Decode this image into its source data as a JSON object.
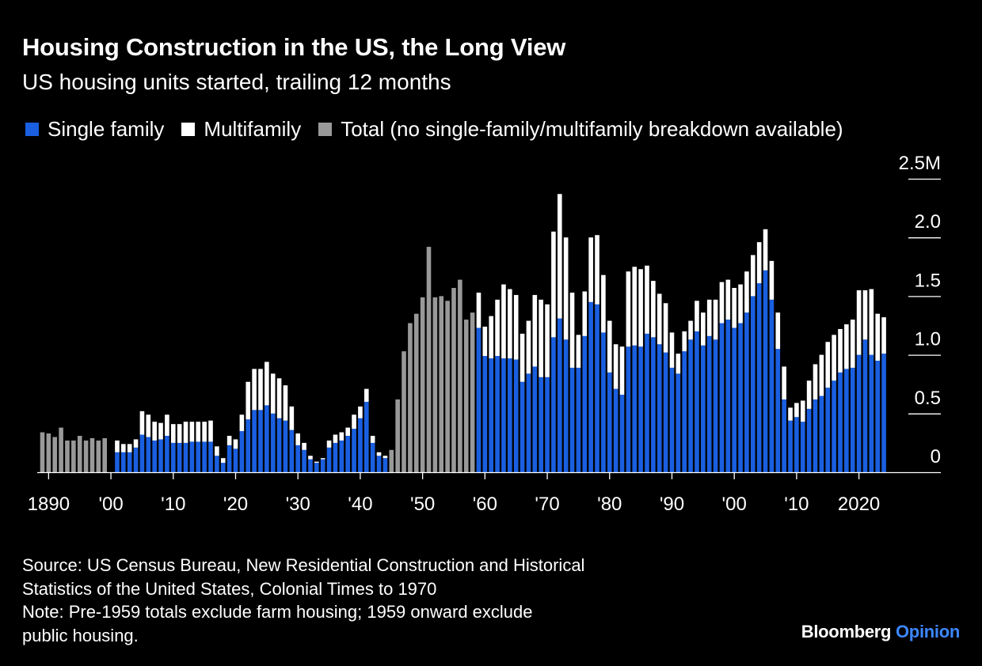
{
  "title": "Housing Construction in the US, the Long View",
  "subtitle": "US housing units started, trailing 12 months",
  "legend": [
    {
      "label": "Single family",
      "color": "#1a5fe0"
    },
    {
      "label": "Multifamily",
      "color": "#ffffff"
    },
    {
      "label": "Total (no single-family/multifamily breakdown available)",
      "color": "#999999"
    }
  ],
  "source": {
    "line1": "Source: US Census Bureau, New Residential Construction and Historical",
    "line2": "Statistics of the United States, Colonial Times to 1970",
    "note1": "Note: Pre-1959 totals exclude farm housing; 1959 onward exclude",
    "note2": "public housing."
  },
  "brand": {
    "name": "Bloomberg",
    "suffix": "Opinion"
  },
  "chart_data": {
    "type": "bar",
    "stacked": true,
    "ylim": [
      0,
      2.5
    ],
    "yticks": [
      {
        "value": 0,
        "label": "0"
      },
      {
        "value": 0.5,
        "label": "0.5"
      },
      {
        "value": 1.0,
        "label": "1.0"
      },
      {
        "value": 1.5,
        "label": "1.5"
      },
      {
        "value": 2.0,
        "label": "2.0"
      },
      {
        "value": 2.5,
        "label": "2.5M"
      }
    ],
    "xticks": [
      {
        "year": 1890,
        "label": "1890"
      },
      {
        "year": 1900,
        "label": "'00"
      },
      {
        "year": 1910,
        "label": "'10"
      },
      {
        "year": 1920,
        "label": "'20"
      },
      {
        "year": 1930,
        "label": "'30"
      },
      {
        "year": 1940,
        "label": "'40"
      },
      {
        "year": 1950,
        "label": "'50"
      },
      {
        "year": 1960,
        "label": "'60"
      },
      {
        "year": 1970,
        "label": "'70"
      },
      {
        "year": 1980,
        "label": "'80"
      },
      {
        "year": 1990,
        "label": "'90"
      },
      {
        "year": 2000,
        "label": "'00"
      },
      {
        "year": 2010,
        "label": "'10"
      },
      {
        "year": 2020,
        "label": "2020"
      }
    ],
    "series": [
      {
        "name": "Single family",
        "color": "#1a5fe0"
      },
      {
        "name": "Multifamily",
        "color": "#ffffff"
      },
      {
        "name": "Total (no single-family/multifamily breakdown available)",
        "color": "#999999"
      }
    ],
    "total_only": {
      "start_year": 1889,
      "values": [
        0.34,
        0.33,
        0.3,
        0.38,
        0.27,
        0.27,
        0.31,
        0.27,
        0.29,
        0.27,
        0.29,
        0.19,
        0.62,
        1.03,
        1.27,
        1.35,
        1.49,
        1.92,
        1.49,
        1.5,
        1.46,
        1.57,
        1.64,
        1.3,
        1.36
      ]
    },
    "year_1900_note": "1900 has no bar",
    "stacked_pre1945": {
      "start_year": 1900,
      "single": [
        0.12,
        0.17,
        0.17,
        0.17,
        0.21,
        0.32,
        0.3,
        0.27,
        0.28,
        0.31,
        0.25,
        0.25,
        0.25,
        0.26,
        0.26,
        0.26,
        0.26,
        0.14,
        0.08,
        0.23,
        0.2,
        0.35,
        0.45,
        0.53,
        0.53,
        0.57,
        0.5,
        0.46,
        0.44,
        0.36,
        0.23,
        0.19,
        0.11,
        0.08,
        0.11,
        0.21,
        0.25,
        0.27,
        0.31,
        0.37,
        0.46,
        0.6,
        0.25,
        0.14,
        0.12
      ],
      "multi": [
        0.06,
        0.1,
        0.07,
        0.07,
        0.07,
        0.2,
        0.19,
        0.16,
        0.14,
        0.18,
        0.16,
        0.16,
        0.18,
        0.17,
        0.17,
        0.17,
        0.18,
        0.08,
        0.04,
        0.08,
        0.08,
        0.14,
        0.32,
        0.35,
        0.35,
        0.37,
        0.34,
        0.34,
        0.3,
        0.2,
        0.1,
        0.06,
        0.03,
        0.01,
        0.01,
        0.06,
        0.07,
        0.07,
        0.07,
        0.12,
        0.1,
        0.11,
        0.06,
        0.03,
        0.02
      ]
    },
    "stacked_post1959": {
      "start_year": 1959,
      "single": [
        1.23,
        0.99,
        0.97,
        0.99,
        0.97,
        0.97,
        0.96,
        0.77,
        0.84,
        0.9,
        0.81,
        0.81,
        1.15,
        1.31,
        1.13,
        0.89,
        0.89,
        1.16,
        1.45,
        1.43,
        1.19,
        0.85,
        0.71,
        0.66,
        1.07,
        1.08,
        1.07,
        1.18,
        1.15,
        1.09,
        1.02,
        0.89,
        0.84,
        1.03,
        1.13,
        1.2,
        1.08,
        1.16,
        1.13,
        1.27,
        1.3,
        1.23,
        1.27,
        1.36,
        1.5,
        1.61,
        1.72,
        1.47,
        1.05,
        0.62,
        0.44,
        0.47,
        0.43,
        0.54,
        0.62,
        0.65,
        0.72,
        0.78,
        0.85,
        0.88,
        0.89,
        1.0,
        1.13,
        1.0,
        0.95,
        1.01
      ],
      "multi": [
        0.3,
        0.25,
        0.36,
        0.48,
        0.63,
        0.59,
        0.55,
        0.41,
        0.45,
        0.61,
        0.66,
        0.62,
        0.9,
        1.06,
        0.87,
        0.64,
        0.28,
        0.38,
        0.55,
        0.59,
        0.49,
        0.44,
        0.38,
        0.41,
        0.64,
        0.67,
        0.66,
        0.58,
        0.48,
        0.43,
        0.42,
        0.3,
        0.17,
        0.17,
        0.16,
        0.26,
        0.28,
        0.31,
        0.34,
        0.35,
        0.34,
        0.34,
        0.33,
        0.35,
        0.35,
        0.35,
        0.35,
        0.33,
        0.31,
        0.28,
        0.11,
        0.12,
        0.18,
        0.24,
        0.3,
        0.35,
        0.39,
        0.39,
        0.37,
        0.38,
        0.41,
        0.55,
        0.42,
        0.56,
        0.4,
        0.31
      ]
    }
  }
}
